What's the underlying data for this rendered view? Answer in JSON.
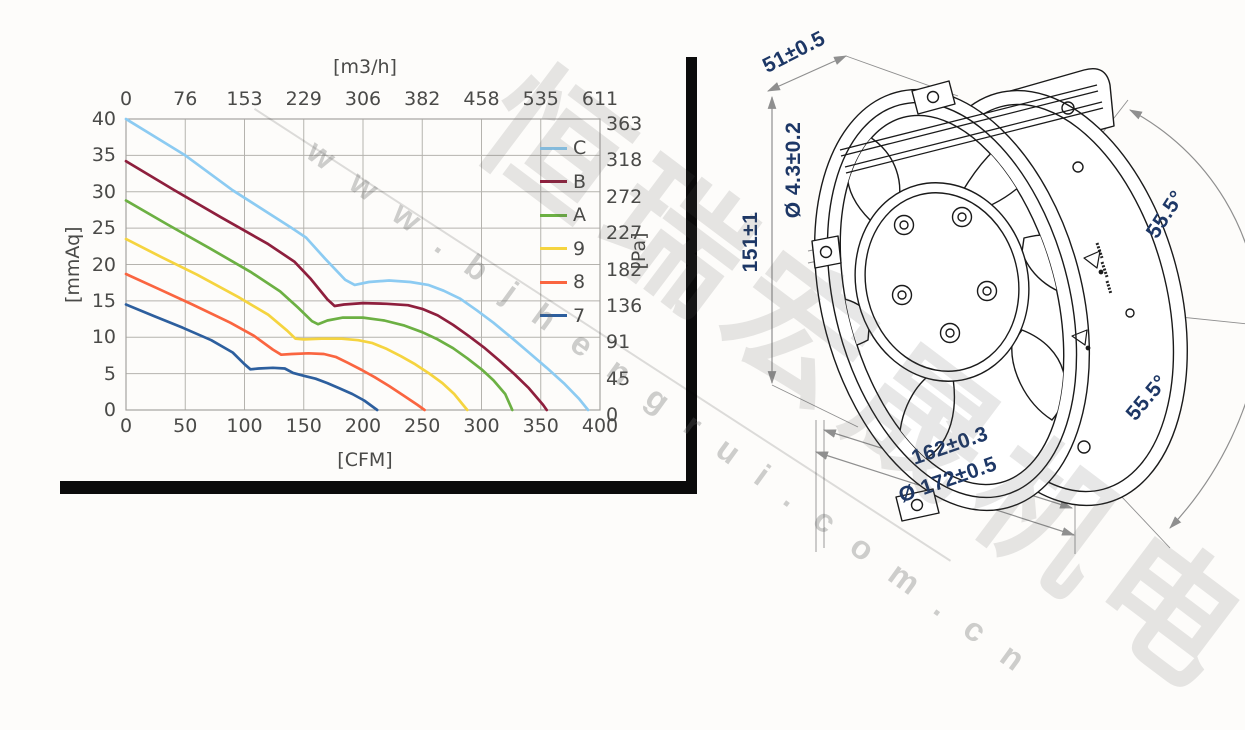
{
  "watermark": {
    "company_text": "恒瑞宏晟机电",
    "url_text": "w w w . b j h e n g r u i . c o m . c n",
    "color": "#bdbdbd"
  },
  "colors": {
    "frame": "#0b0b0b",
    "grid": "#b5b3ae",
    "plot_border": "#a6a4a0",
    "axis_text": "#4a4a48",
    "dim_text": "#1d3766",
    "dim_line": "#8f8f8f",
    "drawing_line": "#1a1a1a"
  },
  "chart_data": {
    "type": "line",
    "title": "",
    "grid": true,
    "legend_position": "top-right",
    "axes": {
      "top": {
        "label": "[m3/h]",
        "ticks": [
          0,
          76,
          153,
          229,
          306,
          382,
          458,
          535,
          611
        ]
      },
      "bottom": {
        "label": "[CFM]",
        "ticks": [
          0,
          50,
          100,
          150,
          200,
          250,
          300,
          350,
          400
        ],
        "range": [
          0,
          400
        ]
      },
      "left": {
        "label": "[mmAq]",
        "ticks": [
          40,
          35,
          30,
          25,
          20,
          15,
          10,
          5,
          0
        ],
        "range": [
          0,
          40
        ]
      },
      "right": {
        "label": "[Pa]",
        "ticks": [
          363,
          318,
          272,
          227,
          182,
          136,
          91,
          45,
          0
        ],
        "range": [
          0,
          363
        ]
      }
    },
    "series": [
      {
        "name": "C",
        "color": "#8ccbf2",
        "points": [
          [
            0,
            40
          ],
          [
            50,
            35
          ],
          [
            90,
            30.2
          ],
          [
            140,
            25
          ],
          [
            152,
            23.7
          ],
          [
            168,
            20.8
          ],
          [
            185,
            17.9
          ],
          [
            193,
            17.2
          ],
          [
            205,
            17.6
          ],
          [
            222,
            17.8
          ],
          [
            240,
            17.6
          ],
          [
            255,
            17.2
          ],
          [
            268,
            16.4
          ],
          [
            282,
            15.3
          ],
          [
            296,
            13.7
          ],
          [
            310,
            12
          ],
          [
            325,
            10
          ],
          [
            340,
            7.9
          ],
          [
            355,
            5.8
          ],
          [
            370,
            3.6
          ],
          [
            382,
            1.6
          ],
          [
            390,
            0
          ]
        ]
      },
      {
        "name": "B",
        "color": "#8e1f3d",
        "points": [
          [
            0,
            34.2
          ],
          [
            40,
            30.3
          ],
          [
            80,
            26.5
          ],
          [
            120,
            22.8
          ],
          [
            142,
            20.4
          ],
          [
            156,
            18
          ],
          [
            170,
            15.2
          ],
          [
            176,
            14.3
          ],
          [
            184,
            14.5
          ],
          [
            200,
            14.7
          ],
          [
            220,
            14.6
          ],
          [
            238,
            14.4
          ],
          [
            250,
            13.9
          ],
          [
            263,
            13
          ],
          [
            276,
            11.7
          ],
          [
            289,
            10.2
          ],
          [
            302,
            8.6
          ],
          [
            315,
            6.8
          ],
          [
            328,
            4.9
          ],
          [
            340,
            3
          ],
          [
            352,
            0.7
          ],
          [
            355,
            0
          ]
        ]
      },
      {
        "name": "A",
        "color": "#6cb043",
        "points": [
          [
            0,
            28.8
          ],
          [
            35,
            25.5
          ],
          [
            70,
            22.3
          ],
          [
            105,
            19
          ],
          [
            130,
            16.3
          ],
          [
            145,
            14.1
          ],
          [
            157,
            12.2
          ],
          [
            162,
            11.8
          ],
          [
            170,
            12.3
          ],
          [
            183,
            12.7
          ],
          [
            200,
            12.7
          ],
          [
            218,
            12.3
          ],
          [
            235,
            11.6
          ],
          [
            250,
            10.7
          ],
          [
            263,
            9.7
          ],
          [
            276,
            8.5
          ],
          [
            288,
            7.1
          ],
          [
            300,
            5.6
          ],
          [
            310,
            4.1
          ],
          [
            320,
            2.2
          ],
          [
            326,
            0
          ]
        ]
      },
      {
        "name": "9",
        "color": "#f5d43f",
        "points": [
          [
            0,
            23.5
          ],
          [
            30,
            21
          ],
          [
            60,
            18.6
          ],
          [
            95,
            15.5
          ],
          [
            120,
            13.1
          ],
          [
            136,
            10.9
          ],
          [
            143,
            9.8
          ],
          [
            150,
            9.7
          ],
          [
            165,
            9.8
          ],
          [
            182,
            9.8
          ],
          [
            196,
            9.6
          ],
          [
            208,
            9.2
          ],
          [
            220,
            8.4
          ],
          [
            232,
            7.4
          ],
          [
            244,
            6.3
          ],
          [
            256,
            5
          ],
          [
            267,
            3.7
          ],
          [
            277,
            2.2
          ],
          [
            286,
            0.4
          ],
          [
            288,
            0
          ]
        ]
      },
      {
        "name": "8",
        "color": "#fa6540",
        "points": [
          [
            0,
            18.7
          ],
          [
            28,
            16.6
          ],
          [
            56,
            14.5
          ],
          [
            88,
            12
          ],
          [
            108,
            10.2
          ],
          [
            124,
            8.3
          ],
          [
            131,
            7.6
          ],
          [
            140,
            7.7
          ],
          [
            154,
            7.8
          ],
          [
            167,
            7.7
          ],
          [
            177,
            7.3
          ],
          [
            187,
            6.5
          ],
          [
            199,
            5.5
          ],
          [
            210,
            4.5
          ],
          [
            222,
            3.3
          ],
          [
            234,
            2
          ],
          [
            246,
            0.7
          ],
          [
            252,
            0
          ]
        ]
      },
      {
        "name": "7",
        "color": "#2d5f9e",
        "points": [
          [
            0,
            14.5
          ],
          [
            24,
            12.9
          ],
          [
            48,
            11.3
          ],
          [
            72,
            9.6
          ],
          [
            90,
            7.9
          ],
          [
            100,
            6.3
          ],
          [
            105,
            5.6
          ],
          [
            112,
            5.7
          ],
          [
            124,
            5.8
          ],
          [
            134,
            5.7
          ],
          [
            141,
            5.1
          ],
          [
            150,
            4.7
          ],
          [
            160,
            4.3
          ],
          [
            170,
            3.7
          ],
          [
            180,
            3
          ],
          [
            191,
            2.2
          ],
          [
            201,
            1.3
          ],
          [
            212,
            0
          ]
        ]
      }
    ]
  },
  "diagram": {
    "dim_depth": "51±0.5",
    "dim_height": "151±1",
    "dim_hole": "Ø 4.3±0.2",
    "dim_bolt_spacing": "162±0.3",
    "dim_outer_diameter": "Ø 172±0.5",
    "dim_angle_upper": "55.5°",
    "dim_angle_lower": "55.5°"
  }
}
